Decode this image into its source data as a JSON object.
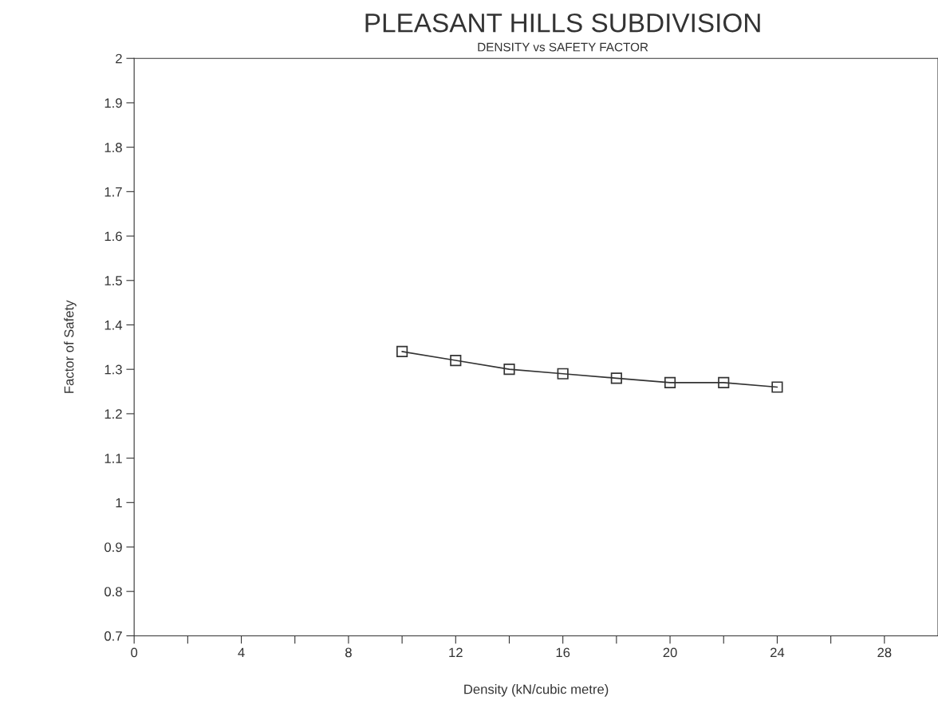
{
  "chart_data": {
    "type": "line",
    "title": "PLEASANT HILLS SUBDIVISION",
    "subtitle": "DENSITY vs SAFETY FACTOR",
    "xlabel": "Density (kN/cubic metre)",
    "ylabel": "Factor of Safety",
    "x": [
      10,
      12,
      14,
      16,
      18,
      20,
      22,
      24
    ],
    "series": [
      {
        "color": "#333333",
        "values": [
          1.34,
          1.32,
          1.3,
          1.29,
          1.28,
          1.27,
          1.27,
          1.26
        ]
      }
    ],
    "xlim": [
      0,
      30
    ],
    "xticks": [
      0,
      {
        "value": 2,
        "label": null
      },
      4,
      {
        "value": 6,
        "label": null
      },
      8,
      {
        "value": 10,
        "label": null
      },
      12,
      {
        "value": 14,
        "label": null
      },
      16,
      {
        "value": 18,
        "label": null
      },
      20,
      {
        "value": 22,
        "label": null
      },
      24,
      {
        "value": 26,
        "label": null
      },
      28
    ],
    "ylim": [
      0.7,
      2
    ],
    "yticks": [
      0.7,
      0.8,
      0.9,
      1,
      1.1,
      1.2,
      1.3,
      1.4,
      1.5,
      1.6,
      1.7,
      1.8,
      1.9,
      2
    ],
    "marker": "square",
    "line_style": "solid",
    "grid": false,
    "legend": false
  }
}
